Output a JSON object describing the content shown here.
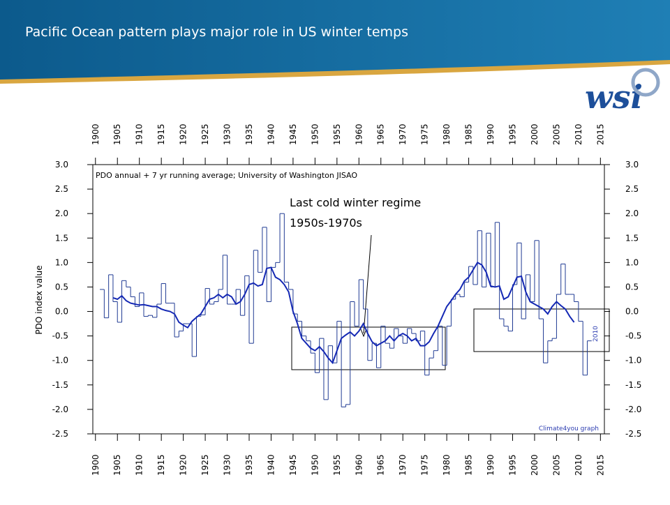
{
  "header": {
    "title": "Pacific Ocean pattern plays major role in US winter temps",
    "logo": "wsi"
  },
  "chart_data": {
    "type": "line",
    "subtitle": "PDO annual + 7 yr running average; University of Washington JISAO",
    "credit": "Climate4you graph",
    "ylabel": "PDO index value",
    "annotations": [
      "Last cold winter regime",
      "1950s-1970s",
      "2010"
    ],
    "xlim": [
      1899.4,
      2015.9
    ],
    "xticks": [
      1900,
      1905,
      1910,
      1915,
      1920,
      1925,
      1930,
      1935,
      1940,
      1945,
      1950,
      1955,
      1960,
      1965,
      1970,
      1975,
      1980,
      1985,
      1990,
      1995,
      2000,
      2005,
      2010,
      2015
    ],
    "ylim": [
      -2.5,
      3.0
    ],
    "yticks": [
      {
        "value": 3.0,
        "label": "3.0"
      },
      {
        "value": 2.5,
        "label": "2.5"
      },
      {
        "value": 2.0,
        "label": "2.0"
      },
      {
        "value": 1.5,
        "label": "1.5"
      },
      {
        "value": 1.0,
        "label": "1.0"
      },
      {
        "value": 0.5,
        "label": "0.5"
      },
      {
        "value": 0.0,
        "label": "0.0"
      },
      {
        "value": -0.5,
        "label": "-0.5"
      },
      {
        "value": -1.0,
        "label": "-1.0"
      },
      {
        "value": -1.5,
        "label": "-1.5"
      },
      {
        "value": -2.0,
        "label": "-2.0"
      },
      {
        "value": -2.5,
        "label": "-2.5"
      }
    ],
    "series": [
      {
        "style": "step",
        "color": "#1f3a93",
        "x": [
          1901,
          1902,
          1903,
          1904,
          1905,
          1906,
          1907,
          1908,
          1909,
          1910,
          1911,
          1912,
          1913,
          1914,
          1915,
          1916,
          1917,
          1918,
          1919,
          1920,
          1921,
          1922,
          1923,
          1924,
          1925,
          1926,
          1927,
          1928,
          1929,
          1930,
          1931,
          1932,
          1933,
          1934,
          1935,
          1936,
          1937,
          1938,
          1939,
          1940,
          1941,
          1942,
          1943,
          1944,
          1945,
          1946,
          1947,
          1948,
          1949,
          1950,
          1951,
          1952,
          1953,
          1954,
          1955,
          1956,
          1957,
          1958,
          1959,
          1960,
          1961,
          1962,
          1963,
          1964,
          1965,
          1966,
          1967,
          1968,
          1969,
          1970,
          1971,
          1972,
          1973,
          1974,
          1975,
          1976,
          1977,
          1978,
          1979,
          1980,
          1981,
          1982,
          1983,
          1984,
          1985,
          1986,
          1987,
          1988,
          1989,
          1990,
          1991,
          1992,
          1993,
          1994,
          1995,
          1996,
          1997,
          1998,
          1999,
          2000,
          2001,
          2002,
          2003,
          2004,
          2005,
          2006,
          2007,
          2008,
          2009,
          2010,
          2011,
          2012
        ],
        "values": [
          0.45,
          -0.13,
          0.75,
          0.2,
          -0.22,
          0.63,
          0.5,
          0.3,
          0.1,
          0.38,
          -0.1,
          -0.08,
          -0.12,
          0.15,
          0.57,
          0.17,
          0.17,
          -0.52,
          -0.4,
          -0.25,
          -0.25,
          -0.92,
          -0.1,
          -0.07,
          0.47,
          0.15,
          0.2,
          0.45,
          1.15,
          0.15,
          0.15,
          0.45,
          -0.08,
          0.73,
          -0.65,
          1.25,
          0.8,
          1.72,
          0.2,
          0.9,
          1.0,
          2.0,
          0.6,
          0.45,
          -0.05,
          -0.2,
          -0.5,
          -0.6,
          -0.85,
          -1.25,
          -0.55,
          -1.8,
          -0.7,
          -1.05,
          -0.2,
          -1.95,
          -1.9,
          0.2,
          -0.3,
          0.65,
          0.05,
          -1.0,
          -0.65,
          -1.15,
          -0.3,
          -0.65,
          -0.75,
          -0.35,
          -0.5,
          -0.65,
          -0.35,
          -0.45,
          -0.6,
          -0.4,
          -1.3,
          -0.95,
          -0.8,
          -0.3,
          -1.1,
          -0.3,
          0.25,
          0.35,
          0.3,
          0.6,
          0.92,
          0.55,
          1.65,
          0.5,
          1.6,
          0.5,
          1.82,
          -0.15,
          -0.3,
          -0.4,
          0.55,
          1.4,
          -0.15,
          0.75,
          0.2,
          1.45,
          -0.15,
          -1.05,
          -0.6,
          -0.55,
          0.35,
          0.97,
          0.35,
          0.35,
          0.2,
          -0.2,
          -1.3,
          -0.6
        ]
      },
      {
        "style": "line",
        "color": "#1428b4",
        "x": [
          1904,
          1905,
          1906,
          1907,
          1908,
          1909,
          1910,
          1911,
          1912,
          1913,
          1914,
          1915,
          1916,
          1917,
          1918,
          1919,
          1920,
          1921,
          1922,
          1923,
          1924,
          1925,
          1926,
          1927,
          1928,
          1929,
          1930,
          1931,
          1932,
          1933,
          1934,
          1935,
          1936,
          1937,
          1938,
          1939,
          1940,
          1941,
          1942,
          1943,
          1944,
          1945,
          1946,
          1947,
          1948,
          1949,
          1950,
          1951,
          1952,
          1953,
          1954,
          1955,
          1956,
          1957,
          1958,
          1959,
          1960,
          1961,
          1962,
          1963,
          1964,
          1965,
          1966,
          1967,
          1968,
          1969,
          1970,
          1971,
          1972,
          1973,
          1974,
          1975,
          1976,
          1977,
          1978,
          1979,
          1980,
          1981,
          1982,
          1983,
          1984,
          1985,
          1986,
          1987,
          1988,
          1989,
          1990,
          1991,
          1992,
          1993,
          1994,
          1995,
          1996,
          1997,
          1998,
          1999,
          2000,
          2001,
          2002,
          2003,
          2004,
          2005,
          2006,
          2007,
          2008,
          2009
        ],
        "values": [
          0.28,
          0.25,
          0.32,
          0.22,
          0.17,
          0.15,
          0.13,
          0.14,
          0.12,
          0.1,
          0.1,
          0.05,
          0.02,
          0.0,
          -0.05,
          -0.22,
          -0.28,
          -0.33,
          -0.2,
          -0.12,
          -0.05,
          0.1,
          0.25,
          0.28,
          0.35,
          0.28,
          0.35,
          0.3,
          0.15,
          0.2,
          0.35,
          0.55,
          0.58,
          0.52,
          0.55,
          0.88,
          0.9,
          0.7,
          0.65,
          0.55,
          0.4,
          0.0,
          -0.25,
          -0.55,
          -0.65,
          -0.75,
          -0.8,
          -0.72,
          -0.82,
          -0.95,
          -1.05,
          -0.8,
          -0.55,
          -0.48,
          -0.42,
          -0.5,
          -0.4,
          -0.25,
          -0.45,
          -0.62,
          -0.7,
          -0.65,
          -0.6,
          -0.5,
          -0.6,
          -0.5,
          -0.45,
          -0.5,
          -0.6,
          -0.55,
          -0.7,
          -0.7,
          -0.62,
          -0.45,
          -0.3,
          -0.1,
          0.1,
          0.22,
          0.35,
          0.45,
          0.62,
          0.7,
          0.85,
          1.0,
          0.95,
          0.8,
          0.52,
          0.5,
          0.52,
          0.25,
          0.3,
          0.5,
          0.7,
          0.72,
          0.4,
          0.2,
          0.15,
          0.1,
          0.05,
          -0.05,
          0.1,
          0.2,
          0.12,
          0.05,
          -0.1,
          -0.22
        ]
      }
    ]
  }
}
